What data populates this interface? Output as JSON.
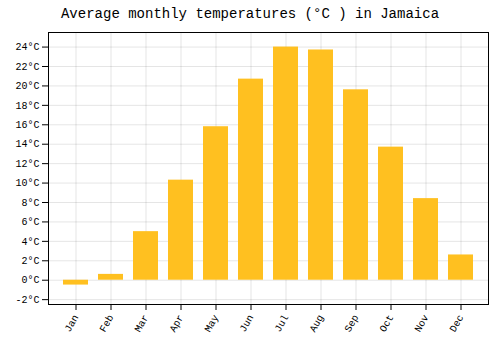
{
  "chart_data": {
    "type": "bar",
    "title": "Average monthly temperatures (°C ) in Jamaica",
    "categories": [
      "Jan",
      "Feb",
      "Mar",
      "Apr",
      "May",
      "Jun",
      "Jul",
      "Aug",
      "Sep",
      "Oct",
      "Nov",
      "Dec"
    ],
    "values": [
      -0.5,
      0.6,
      5.0,
      10.3,
      15.8,
      20.7,
      24.0,
      23.7,
      19.6,
      13.7,
      8.4,
      2.6
    ],
    "color": "#FFC020",
    "ylim": [
      -2.5,
      25.5
    ],
    "yticks": [
      {
        "value": -2,
        "label": "-2°C"
      },
      {
        "value": 0,
        "label": "0°C"
      },
      {
        "value": 2,
        "label": "2°C"
      },
      {
        "value": 4,
        "label": "4°C"
      },
      {
        "value": 6,
        "label": "6°C"
      },
      {
        "value": 8,
        "label": "8°C"
      },
      {
        "value": 10,
        "label": "10°C"
      },
      {
        "value": 12,
        "label": "12°C"
      },
      {
        "value": 14,
        "label": "14°C"
      },
      {
        "value": 16,
        "label": "16°C"
      },
      {
        "value": 18,
        "label": "18°C"
      },
      {
        "value": 20,
        "label": "20°C"
      },
      {
        "value": 22,
        "label": "22°C"
      },
      {
        "value": 24,
        "label": "24°C"
      }
    ],
    "grid": true
  }
}
